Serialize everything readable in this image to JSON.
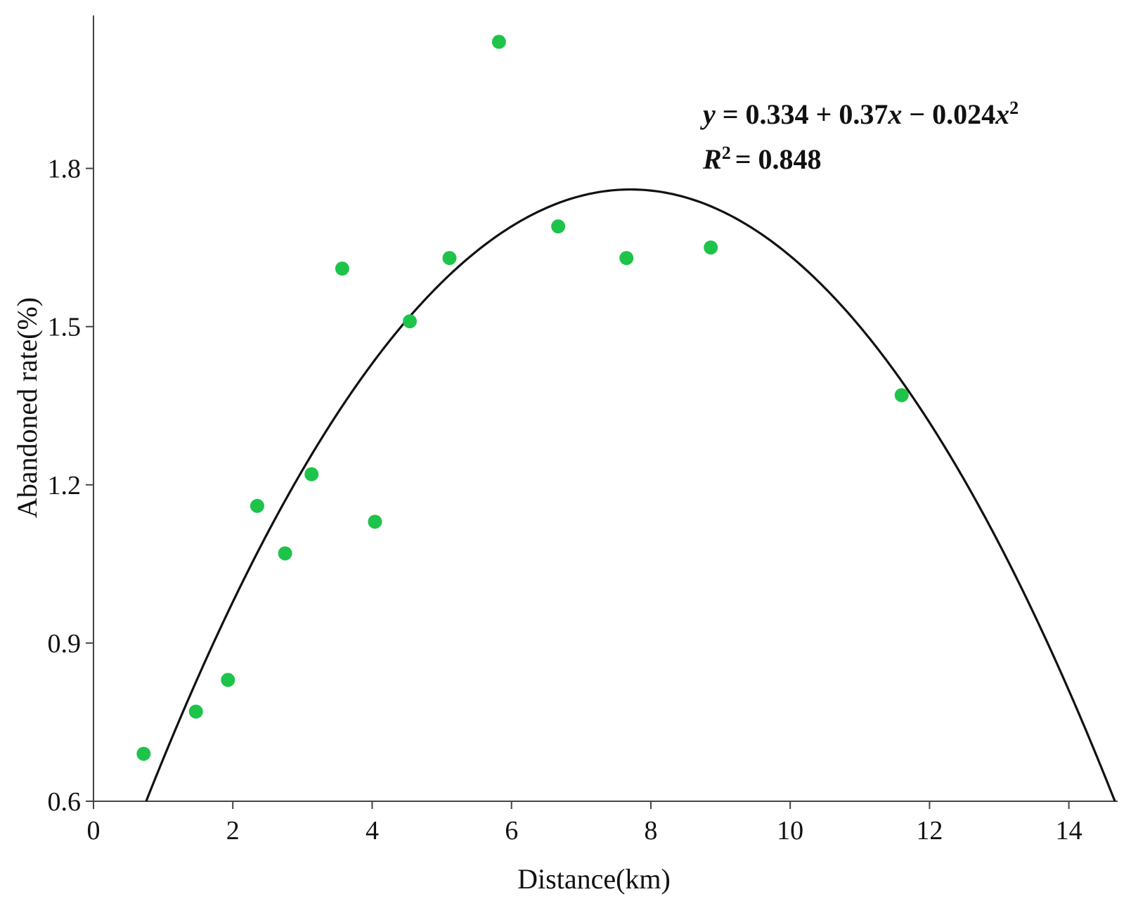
{
  "chart_data": {
    "type": "scatter",
    "xlabel": "Distance(km)",
    "ylabel": "Abandoned rate(%)",
    "xlim": [
      0,
      14.7
    ],
    "ylim": [
      0.6,
      2.09
    ],
    "x_ticks": [
      0,
      2,
      4,
      6,
      8,
      10,
      12,
      14
    ],
    "x_tick_labels": [
      "0",
      "2",
      "4",
      "6",
      "8",
      "10",
      "12",
      "14"
    ],
    "y_ticks": [
      0.6,
      0.9,
      1.2,
      1.5,
      1.8
    ],
    "y_tick_labels": [
      "0.6",
      "0.9",
      "1.2",
      "1.5",
      "1.8"
    ],
    "grid": false,
    "points": {
      "x": [
        0.72,
        1.47,
        1.93,
        2.35,
        2.75,
        3.13,
        3.57,
        4.04,
        4.54,
        5.11,
        5.82,
        6.67,
        7.65,
        8.86,
        11.6
      ],
      "y": [
        0.69,
        0.77,
        0.83,
        1.16,
        1.07,
        1.22,
        1.61,
        1.13,
        1.51,
        1.63,
        2.04,
        1.69,
        1.63,
        1.65,
        1.37
      ],
      "color": "#1ec44a"
    },
    "fit": {
      "equation_parts": {
        "y": "y",
        "eq": " = 0.334 + 0.37",
        "x1": "x",
        "minus": " − 0.024",
        "x2": "x",
        "sup": "2"
      },
      "r2_parts": {
        "r": "R",
        "sup": "2",
        "value": "= 0.848"
      },
      "coefficients": {
        "a": 0.334,
        "b": 0.37,
        "c": -0.024
      },
      "color": "#111111"
    }
  }
}
